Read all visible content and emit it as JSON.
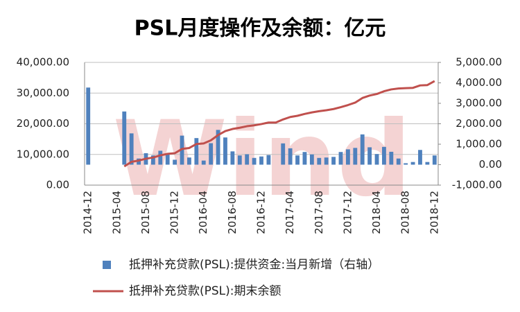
{
  "chart_data": {
    "type": "bar_line",
    "title": "PSL月度操作及余额：亿元",
    "watermark": "Wind",
    "categories": [
      "2014-12",
      null,
      null,
      null,
      "2015-04",
      null,
      null,
      null,
      "2015-08",
      null,
      null,
      null,
      "2015-12",
      null,
      null,
      null,
      "2016-04",
      null,
      null,
      null,
      "2016-08",
      null,
      null,
      null,
      "2016-12",
      null,
      null,
      null,
      "2017-04",
      null,
      null,
      null,
      "2017-08",
      null,
      null,
      null,
      "2017-12",
      null,
      null,
      null,
      "2018-04",
      null,
      null,
      null,
      "2018-08",
      null,
      null,
      null,
      "2018-12"
    ],
    "series": [
      {
        "name": "抵押补充贷款(PSL):提供资金:当月新增（右轴）",
        "type": "bar",
        "axis": "y2",
        "color": "#4f81bd",
        "values": [
          3770,
          null,
          null,
          null,
          null,
          2600,
          1530,
          300,
          560,
          450,
          680,
          550,
          240,
          1420,
          350,
          1300,
          200,
          1050,
          1700,
          1330,
          650,
          450,
          510,
          330,
          400,
          470,
          null,
          1040,
          800,
          450,
          620,
          500,
          330,
          350,
          380,
          620,
          750,
          820,
          1480,
          850,
          520,
          870,
          630,
          300,
          70,
          130,
          720,
          130,
          450
        ]
      },
      {
        "name": "抵押补充贷款(PSL):期末余额",
        "type": "line",
        "axis": "y",
        "color": "#c0504d",
        "values": [
          null,
          null,
          null,
          null,
          null,
          6100,
          7600,
          8000,
          8600,
          9000,
          9700,
          10200,
          10400,
          11800,
          12100,
          13400,
          13600,
          14600,
          16300,
          17600,
          18300,
          18700,
          19200,
          19500,
          19900,
          20400,
          20400,
          21400,
          22200,
          22600,
          23200,
          23700,
          24100,
          24400,
          24800,
          25400,
          26100,
          26900,
          28400,
          29200,
          29700,
          30600,
          31200,
          31500,
          31600,
          31700,
          32500,
          32600,
          33900
        ]
      }
    ],
    "ylim": [
      0,
      40000
    ],
    "yticks": [
      {
        "value": 0,
        "label": "0.00"
      },
      {
        "value": 10000,
        "label": "10,000.00"
      },
      {
        "value": 20000,
        "label": "20,000.00"
      },
      {
        "value": 30000,
        "label": "30,000.00"
      },
      {
        "value": 40000,
        "label": "40,000.00"
      }
    ],
    "y2lim": [
      -1000,
      5000
    ],
    "y2ticks": [
      {
        "value": -1000,
        "label": "-1,000.00"
      },
      {
        "value": 0,
        "label": "0.00"
      },
      {
        "value": 1000,
        "label": "1,000.00"
      },
      {
        "value": 2000,
        "label": "2,000.00"
      },
      {
        "value": 3000,
        "label": "3,000.00"
      },
      {
        "value": 4000,
        "label": "4,000.00"
      },
      {
        "value": 5000,
        "label": "5,000.00"
      }
    ],
    "grid": true
  }
}
